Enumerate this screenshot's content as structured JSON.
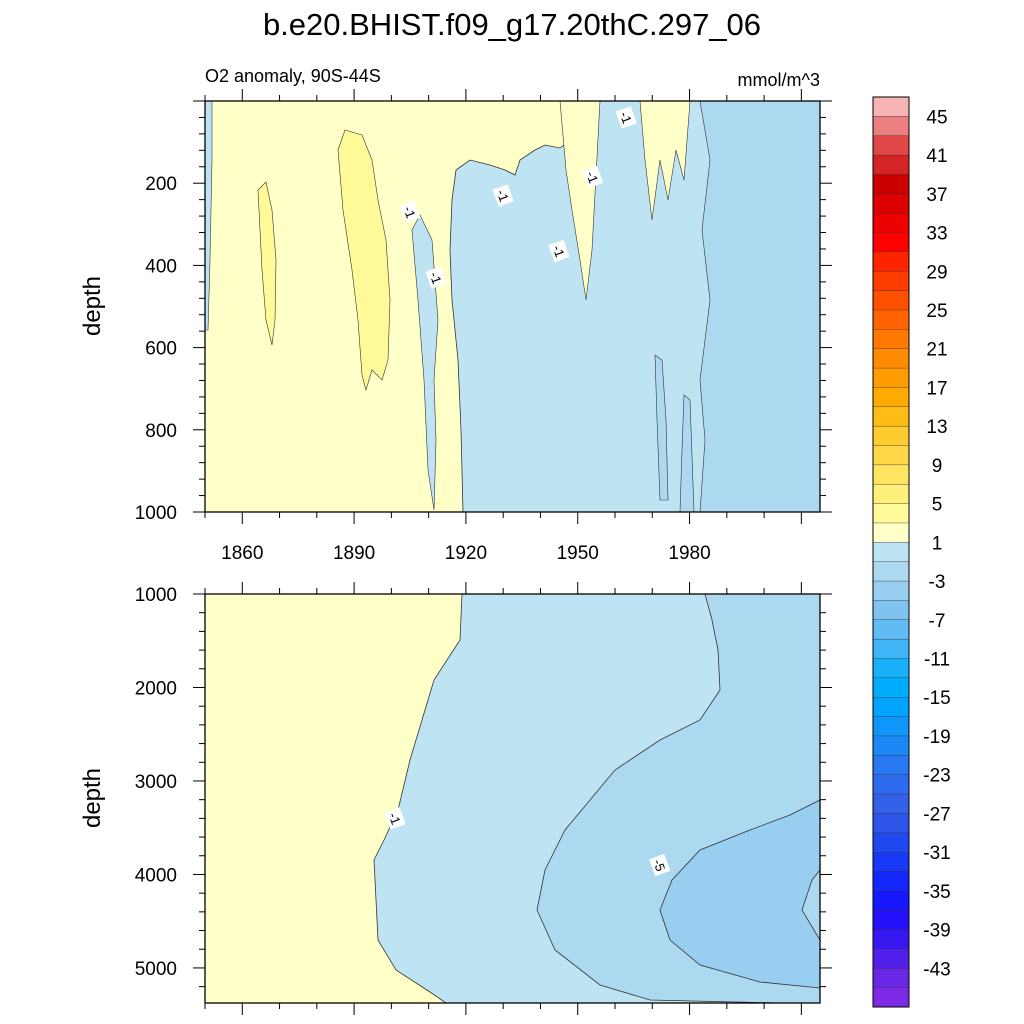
{
  "chart_data": [
    {
      "type": "contour",
      "title": "b.e20.BHIST.f09_g17.20thC.297_06",
      "subtitle_left": "O2 anomaly, 90S-44S",
      "subtitle_right": "mmol/m^3",
      "ylabel": "depth",
      "xlim": [
        1850,
        2015
      ],
      "ylim": [
        0,
        1000
      ],
      "y_inverted": true,
      "x_ticks": [
        1860,
        1890,
        1920,
        1950,
        1980
      ],
      "y_ticks": [
        200,
        400,
        600,
        800,
        1000
      ],
      "contour_labels": [
        {
          "text": "-1",
          "x": 1905,
          "y": 270
        },
        {
          "text": "-1",
          "x": 1912,
          "y": 430
        },
        {
          "text": "-1",
          "x": 1930,
          "y": 230
        },
        {
          "text": "-1",
          "x": 1945,
          "y": 365
        },
        {
          "text": "-1",
          "x": 1954,
          "y": 185
        },
        {
          "text": "-1",
          "x": 1963,
          "y": 40
        }
      ]
    },
    {
      "type": "contour",
      "ylabel": "depth",
      "xlim": [
        1850,
        2015
      ],
      "ylim": [
        1000,
        5375
      ],
      "y_inverted": true,
      "y_ticks": [
        1000,
        2000,
        3000,
        4000,
        5000
      ],
      "contour_labels": [
        {
          "text": "-1",
          "x": 1901,
          "y": 3400
        },
        {
          "text": "-5",
          "x": 1972,
          "y": 3900
        }
      ]
    }
  ],
  "colorbar": {
    "labels": [
      "45",
      "41",
      "37",
      "33",
      "29",
      "25",
      "21",
      "17",
      "13",
      "9",
      "5",
      "1",
      "-3",
      "-7",
      "-11",
      "-15",
      "-19",
      "-23",
      "-27",
      "-31",
      "-35",
      "-39",
      "-43"
    ],
    "colors": [
      "#f7b4b4",
      "#ec8080",
      "#e04848",
      "#d42424",
      "#cc0000",
      "#dc0000",
      "#ec0000",
      "#ff0000",
      "#ff2400",
      "#ff3c00",
      "#ff5000",
      "#ff6400",
      "#ff7800",
      "#ff8c00",
      "#ff9c00",
      "#ffaa00",
      "#ffbc14",
      "#ffcc30",
      "#ffd84a",
      "#ffe460",
      "#fff07c",
      "#fffa98",
      "#ffffc8",
      "#bee4f4",
      "#acd8f0",
      "#98cef0",
      "#7ec4ee",
      "#62bcf4",
      "#40b6f8",
      "#18b0fa",
      "#00acfc",
      "#00a4fc",
      "#1096fa",
      "#1c88f6",
      "#2878f2",
      "#2e6aee",
      "#3460ea",
      "#2e54ea",
      "#2048f0",
      "#1838f6",
      "#1428fa",
      "#1818fc",
      "#2410fa",
      "#3818f0",
      "#5020ea",
      "#6828e6",
      "#7c2ae4"
    ]
  }
}
